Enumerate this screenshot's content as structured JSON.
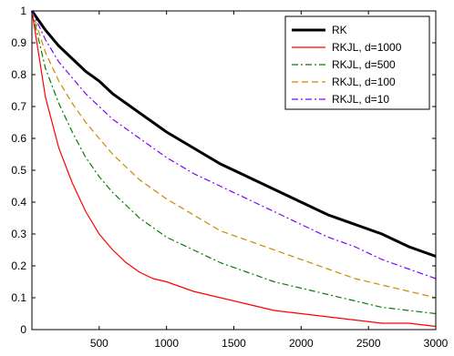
{
  "chart_data": {
    "type": "line",
    "title": "",
    "xlabel": "",
    "ylabel": "",
    "xlim": [
      0,
      3000
    ],
    "ylim": [
      0,
      1
    ],
    "xticks": [
      500,
      1000,
      1500,
      2000,
      2500,
      3000
    ],
    "yticks": [
      0,
      0.1,
      0.2,
      0.3,
      0.4,
      0.5,
      0.6,
      0.7,
      0.8,
      0.9,
      1
    ],
    "grid": false,
    "legend_position": "top-right",
    "x": [
      0,
      100,
      200,
      300,
      400,
      500,
      600,
      700,
      800,
      900,
      1000,
      1200,
      1400,
      1600,
      1800,
      2000,
      2200,
      2400,
      2600,
      2800,
      3000
    ],
    "series": [
      {
        "name": "RK",
        "color": "#000000",
        "dash": "solid",
        "values": [
          1.0,
          0.94,
          0.89,
          0.85,
          0.81,
          0.78,
          0.74,
          0.71,
          0.68,
          0.65,
          0.62,
          0.57,
          0.52,
          0.48,
          0.44,
          0.4,
          0.36,
          0.33,
          0.3,
          0.26,
          0.23
        ]
      },
      {
        "name": "RKJL, d=1000",
        "color": "#ff0000",
        "dash": "solid",
        "values": [
          1.0,
          0.73,
          0.57,
          0.46,
          0.37,
          0.3,
          0.25,
          0.21,
          0.18,
          0.16,
          0.15,
          0.12,
          0.1,
          0.08,
          0.06,
          0.05,
          0.04,
          0.03,
          0.02,
          0.02,
          0.01
        ]
      },
      {
        "name": "RKJL, d=500",
        "color": "#008000",
        "dash": "dashdot",
        "values": [
          1.0,
          0.82,
          0.71,
          0.62,
          0.54,
          0.48,
          0.43,
          0.39,
          0.35,
          0.32,
          0.29,
          0.25,
          0.21,
          0.18,
          0.15,
          0.13,
          0.11,
          0.09,
          0.07,
          0.06,
          0.05
        ]
      },
      {
        "name": "RKJL, d=100",
        "color": "#cc8800",
        "dash": "dashed",
        "values": [
          1.0,
          0.87,
          0.78,
          0.71,
          0.65,
          0.6,
          0.55,
          0.51,
          0.47,
          0.44,
          0.41,
          0.36,
          0.31,
          0.28,
          0.25,
          0.22,
          0.19,
          0.16,
          0.14,
          0.12,
          0.1
        ]
      },
      {
        "name": "RKJL, d=10",
        "color": "#7f00ff",
        "dash": "dashdot",
        "values": [
          1.0,
          0.91,
          0.84,
          0.79,
          0.74,
          0.7,
          0.66,
          0.63,
          0.6,
          0.57,
          0.54,
          0.49,
          0.45,
          0.41,
          0.37,
          0.33,
          0.29,
          0.26,
          0.22,
          0.19,
          0.16
        ]
      }
    ]
  }
}
